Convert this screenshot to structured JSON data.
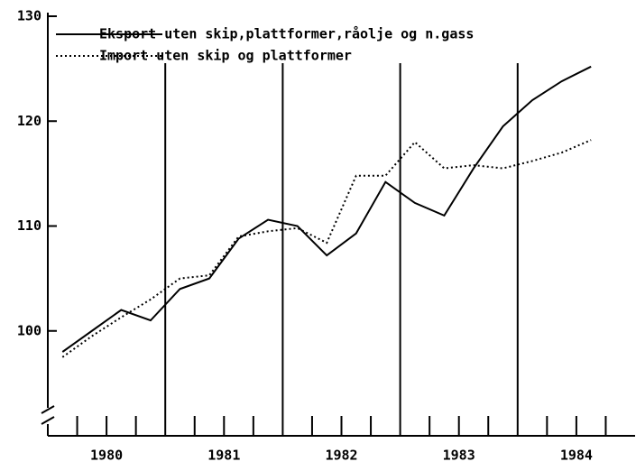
{
  "chart_data": {
    "type": "line",
    "x": [
      1980.125,
      1980.375,
      1980.625,
      1980.875,
      1981.125,
      1981.375,
      1981.625,
      1981.875,
      1982.125,
      1982.375,
      1982.625,
      1982.875,
      1983.125,
      1983.375,
      1983.625,
      1983.875,
      1984.125,
      1984.375,
      1984.625
    ],
    "series": [
      {
        "name": "Eksport uten skip,plattformer,råolje og n.gass",
        "color": "#000000",
        "line_style": "solid",
        "values": [
          98,
          100,
          102,
          101,
          104,
          105,
          108.8,
          110.6,
          110,
          107.2,
          109.3,
          114.2,
          112.2,
          111,
          115.5,
          119.5,
          122,
          123.8,
          125.2
        ]
      },
      {
        "name": "Import uten skip og plattformer",
        "color": "#000000",
        "line_style": "dotted",
        "values": [
          97.5,
          99.5,
          101.3,
          103,
          105,
          105.3,
          109,
          109.5,
          109.8,
          108.4,
          114.8,
          114.8,
          118,
          115.5,
          115.8,
          115.5,
          116.2,
          117,
          118.2
        ]
      }
    ],
    "xlim": [
      1980,
      1985
    ],
    "xticks": [
      {
        "value": 1980.5,
        "label": "1980"
      },
      {
        "value": 1981.5,
        "label": "1981"
      },
      {
        "value": 1982.5,
        "label": "1982"
      },
      {
        "value": 1983.5,
        "label": "1983"
      },
      {
        "value": 1984.5,
        "label": "1984"
      }
    ],
    "x_minor_ticks": [
      1980.25,
      1980.5,
      1980.75,
      1981.25,
      1981.5,
      1981.75,
      1982.25,
      1982.5,
      1982.75,
      1983.25,
      1983.5,
      1983.75,
      1984.25,
      1984.5,
      1984.75
    ],
    "x_grid": [
      1981,
      1982,
      1983,
      1984
    ],
    "ylim": [
      90,
      130
    ],
    "yticks": [
      100,
      110,
      120,
      130
    ],
    "legend": "top-left"
  }
}
